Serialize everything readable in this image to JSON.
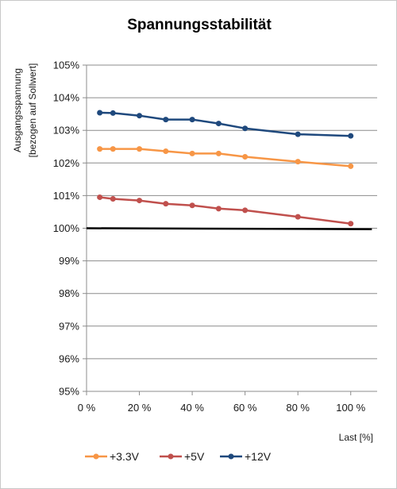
{
  "chart_data": {
    "type": "line",
    "title": "Spannungsstabilität",
    "xlabel": "Last [%]",
    "ylabel": [
      "Ausgangsspannung",
      "[bezogen auf Sollwert]"
    ],
    "xlim": [
      0,
      110
    ],
    "ylim": [
      95,
      105
    ],
    "xticks": [
      0,
      20,
      40,
      60,
      80,
      100
    ],
    "xtick_labels": [
      "0 %",
      "20 %",
      "40 %",
      "60 %",
      "80 %",
      "100 %"
    ],
    "yticks": [
      95,
      96,
      97,
      98,
      99,
      100,
      101,
      102,
      103,
      104,
      105
    ],
    "ytick_labels": [
      "95%",
      "96%",
      "97%",
      "98%",
      "99%",
      "100%",
      "101%",
      "102%",
      "103%",
      "104%",
      "105%"
    ],
    "grid": "horizontal",
    "legend_position": "bottom-left",
    "reference_line": {
      "from": [
        0,
        100
      ],
      "to": [
        108,
        99.97
      ],
      "color": "#000000"
    },
    "series": [
      {
        "name": "+3.3V",
        "color": "#f79646",
        "x": [
          5,
          10,
          20,
          30,
          40,
          50,
          60,
          80,
          100
        ],
        "y": [
          102.43,
          102.43,
          102.43,
          102.36,
          102.29,
          102.29,
          102.19,
          102.04,
          101.9
        ]
      },
      {
        "name": "+5V",
        "color": "#c0504d",
        "x": [
          5,
          10,
          20,
          30,
          40,
          50,
          60,
          80,
          100
        ],
        "y": [
          100.95,
          100.9,
          100.85,
          100.75,
          100.7,
          100.6,
          100.55,
          100.35,
          100.14
        ]
      },
      {
        "name": "+12V",
        "color": "#1f497d",
        "x": [
          5,
          10,
          20,
          30,
          40,
          50,
          60,
          80,
          100
        ],
        "y": [
          103.54,
          103.53,
          103.45,
          103.33,
          103.33,
          103.21,
          103.06,
          102.88,
          102.83
        ]
      }
    ]
  }
}
